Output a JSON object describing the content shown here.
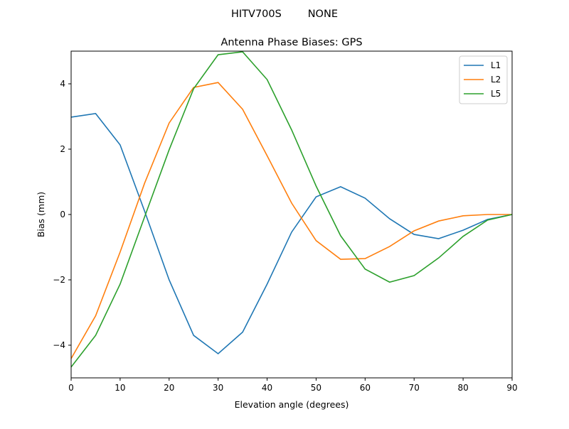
{
  "suptitle": "HITV700S        NONE",
  "chart_data": {
    "type": "line",
    "title": "Antenna Phase Biases: GPS",
    "xlabel": "Elevation angle (degrees)",
    "ylabel": "Bias (mm)",
    "xlim": [
      0,
      90
    ],
    "ylim": [
      -5,
      5
    ],
    "xticks": [
      0,
      10,
      20,
      30,
      40,
      50,
      60,
      70,
      80,
      90
    ],
    "yticks": [
      -4,
      -2,
      0,
      2,
      4
    ],
    "ytick_labels": [
      "−4",
      "−2",
      "0",
      "2",
      "4"
    ],
    "grid": false,
    "legend_placement": "top-right",
    "x": [
      0,
      5,
      10,
      15,
      20,
      25,
      30,
      35,
      40,
      45,
      50,
      55,
      60,
      65,
      70,
      75,
      80,
      85,
      90
    ],
    "series": [
      {
        "name": "L1",
        "color": "#1f77b4",
        "values": [
          2.98,
          3.09,
          2.13,
          0.1,
          -2.0,
          -3.7,
          -4.26,
          -3.6,
          -2.13,
          -0.54,
          0.54,
          0.85,
          0.5,
          -0.13,
          -0.61,
          -0.74,
          -0.48,
          -0.15,
          0.0
        ]
      },
      {
        "name": "L2",
        "color": "#ff7f0e",
        "values": [
          -4.41,
          -3.1,
          -1.15,
          0.96,
          2.8,
          3.89,
          4.04,
          3.22,
          1.8,
          0.35,
          -0.8,
          -1.37,
          -1.35,
          -0.98,
          -0.5,
          -0.2,
          -0.04,
          0.0,
          0.0
        ]
      },
      {
        "name": "L5",
        "color": "#2ca02c",
        "values": [
          -4.67,
          -3.7,
          -2.13,
          -0.07,
          1.98,
          3.85,
          4.89,
          4.98,
          4.13,
          2.59,
          0.87,
          -0.65,
          -1.67,
          -2.07,
          -1.87,
          -1.33,
          -0.67,
          -0.17,
          0.0
        ]
      }
    ]
  }
}
